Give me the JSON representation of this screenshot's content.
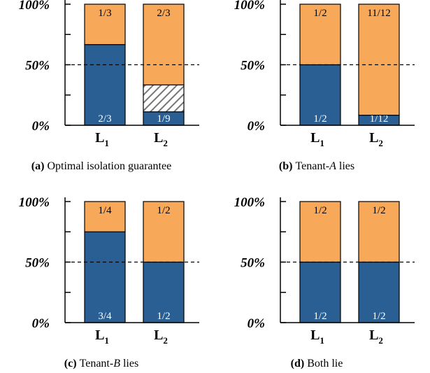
{
  "colors": {
    "blue": "#2a5f94",
    "orange": "#f8a859",
    "hatch_bg": "#ffffff",
    "hatch_line": "#777777",
    "axis": "#000000",
    "label_on_blue": "#ffffff",
    "label_on_orange": "#000000"
  },
  "chart_data": [
    {
      "type": "bar",
      "stacked": true,
      "title": "",
      "caption_tag": "(a)",
      "caption_text": "Optimal isolation guarantee",
      "caption_var": "",
      "caption_suffix": "",
      "ylim": [
        0,
        100
      ],
      "yticks": [
        0,
        25,
        50,
        75,
        100
      ],
      "ytick_labels": [
        "0%",
        "50%",
        "100%"
      ],
      "reference_line": 50,
      "categories": [
        {
          "name": "L",
          "sub": "1"
        },
        {
          "name": "L",
          "sub": "2"
        }
      ],
      "bars": [
        {
          "segments": [
            {
              "value": 66.67,
              "fill": "blue",
              "label": "2/3"
            },
            {
              "value": 33.33,
              "fill": "orange",
              "label": "1/3"
            }
          ]
        },
        {
          "segments": [
            {
              "value": 11.11,
              "fill": "blue",
              "label": "1/9"
            },
            {
              "value": 22.22,
              "fill": "hatch",
              "label": ""
            },
            {
              "value": 66.67,
              "fill": "orange",
              "label": "2/3"
            }
          ]
        }
      ]
    },
    {
      "type": "bar",
      "stacked": true,
      "title": "",
      "caption_tag": "(b)",
      "caption_text": "Tenant-",
      "caption_var": "A",
      "caption_suffix": " lies",
      "ylim": [
        0,
        100
      ],
      "yticks": [
        0,
        25,
        50,
        75,
        100
      ],
      "ytick_labels": [
        "0%",
        "50%",
        "100%"
      ],
      "reference_line": 50,
      "categories": [
        {
          "name": "L",
          "sub": "1"
        },
        {
          "name": "L",
          "sub": "2"
        }
      ],
      "bars": [
        {
          "segments": [
            {
              "value": 50,
              "fill": "blue",
              "label": "1/2"
            },
            {
              "value": 50,
              "fill": "orange",
              "label": "1/2"
            }
          ]
        },
        {
          "segments": [
            {
              "value": 8.33,
              "fill": "blue",
              "label": "1/12"
            },
            {
              "value": 91.67,
              "fill": "orange",
              "label": "11/12"
            }
          ]
        }
      ]
    },
    {
      "type": "bar",
      "stacked": true,
      "title": "",
      "caption_tag": "(c)",
      "caption_text": "Tenant-",
      "caption_var": "B",
      "caption_suffix": " lies",
      "ylim": [
        0,
        100
      ],
      "yticks": [
        0,
        25,
        50,
        75,
        100
      ],
      "ytick_labels": [
        "0%",
        "50%",
        "100%"
      ],
      "reference_line": 50,
      "categories": [
        {
          "name": "L",
          "sub": "1"
        },
        {
          "name": "L",
          "sub": "2"
        }
      ],
      "bars": [
        {
          "segments": [
            {
              "value": 75,
              "fill": "blue",
              "label": "3/4"
            },
            {
              "value": 25,
              "fill": "orange",
              "label": "1/4"
            }
          ]
        },
        {
          "segments": [
            {
              "value": 50,
              "fill": "blue",
              "label": "1/2"
            },
            {
              "value": 50,
              "fill": "orange",
              "label": "1/2"
            }
          ]
        }
      ]
    },
    {
      "type": "bar",
      "stacked": true,
      "title": "",
      "caption_tag": "(d)",
      "caption_text": "Both lie",
      "caption_var": "",
      "caption_suffix": "",
      "ylim": [
        0,
        100
      ],
      "yticks": [
        0,
        25,
        50,
        75,
        100
      ],
      "ytick_labels": [
        "0%",
        "50%",
        "100%"
      ],
      "reference_line": 50,
      "categories": [
        {
          "name": "L",
          "sub": "1"
        },
        {
          "name": "L",
          "sub": "2"
        }
      ],
      "bars": [
        {
          "segments": [
            {
              "value": 50,
              "fill": "blue",
              "label": "1/2"
            },
            {
              "value": 50,
              "fill": "orange",
              "label": "1/2"
            }
          ]
        },
        {
          "segments": [
            {
              "value": 50,
              "fill": "blue",
              "label": "1/2"
            },
            {
              "value": 50,
              "fill": "orange",
              "label": "1/2"
            }
          ]
        }
      ]
    }
  ]
}
